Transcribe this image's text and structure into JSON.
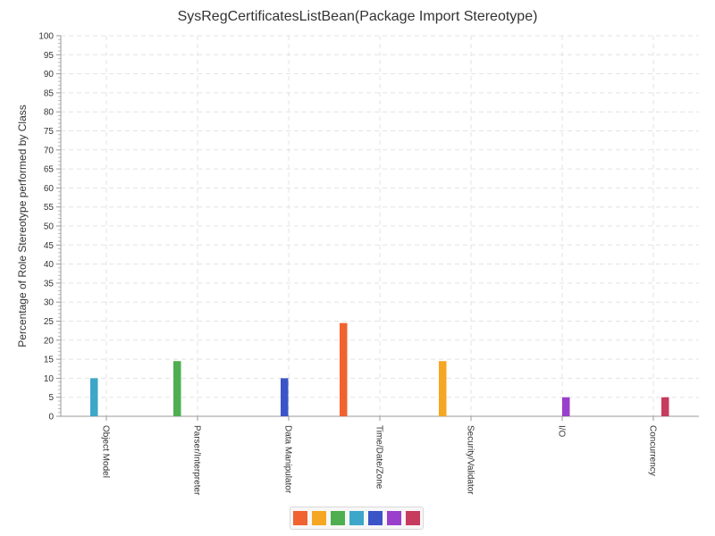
{
  "chart_data": {
    "type": "bar",
    "title": "SysRegCertificatesListBean(Package Import Stereotype)",
    "xlabel": "",
    "ylabel": "Percentage of Role Stereotype performed by Class",
    "ylim": [
      0,
      100
    ],
    "y_major_step": 5,
    "y_minor_step": 1,
    "grid": true,
    "legend_position": "bottom-center",
    "categories": [
      "Object Model",
      "Parser/Interpreter",
      "Data Manipulator",
      "Time/Date/Zone",
      "Security/Validator",
      "I/O",
      "Concurrency"
    ],
    "series": [
      {
        "color": "#f0622f",
        "values": [
          0,
          0,
          0,
          24.5,
          0,
          0,
          0
        ]
      },
      {
        "color": "#f5a623",
        "values": [
          0,
          0,
          0,
          0,
          14.5,
          0,
          0
        ]
      },
      {
        "color": "#4fae50",
        "values": [
          0,
          14.5,
          0,
          0,
          0,
          0,
          0
        ]
      },
      {
        "color": "#3da7c9",
        "values": [
          10,
          0,
          0,
          0,
          0,
          0,
          0
        ]
      },
      {
        "color": "#3b54c8",
        "values": [
          0,
          0,
          10,
          0,
          0,
          0,
          0
        ]
      },
      {
        "color": "#9a3fcc",
        "values": [
          0,
          0,
          0,
          0,
          0,
          5,
          0
        ]
      },
      {
        "color": "#c73b5e",
        "values": [
          0,
          0,
          0,
          0,
          0,
          0,
          5
        ]
      }
    ]
  }
}
